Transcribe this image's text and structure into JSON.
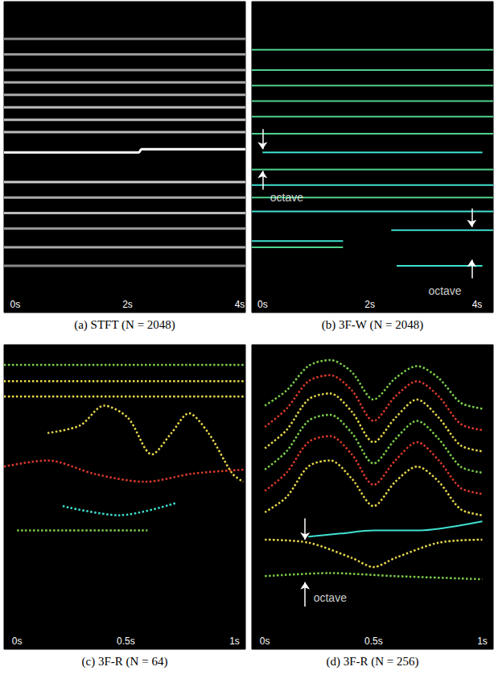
{
  "chart_data": [
    {
      "type": "line",
      "title": "(a) STFT (N = 2048)",
      "xlim": [
        -0.2,
        4.1
      ],
      "xticks": [
        {
          "value": 0,
          "label": "0s"
        },
        {
          "value": 2,
          "label": "2s"
        },
        {
          "value": 4,
          "label": "4s"
        }
      ],
      "ylim": [
        0,
        1
      ],
      "tick_labels": "x",
      "series": [
        {
          "color": "#ffffff",
          "line_style": "solid",
          "values": [
            [
              -0.2,
              0.515
            ],
            [
              2.2,
              0.515
            ],
            [
              2.25,
              0.525
            ],
            [
              4.1,
              0.525
            ]
          ]
        },
        {
          "color": "#bbbbbb",
          "line_style": "solid",
          "values": [
            [
              -0.2,
              0.58
            ],
            [
              4.1,
              0.58
            ]
          ]
        },
        {
          "color": "#bbbbbb",
          "line_style": "solid",
          "values": [
            [
              -0.2,
              0.62
            ],
            [
              4.1,
              0.62
            ]
          ]
        },
        {
          "color": "#bbbbbb",
          "line_style": "solid",
          "values": [
            [
              -0.2,
              0.66
            ],
            [
              4.1,
              0.66
            ]
          ]
        },
        {
          "color": "#aaaaaa",
          "line_style": "solid",
          "values": [
            [
              -0.2,
              0.7
            ],
            [
              4.1,
              0.7
            ]
          ]
        },
        {
          "color": "#aaaaaa",
          "line_style": "solid",
          "values": [
            [
              -0.2,
              0.74
            ],
            [
              4.1,
              0.74
            ]
          ]
        },
        {
          "color": "#999999",
          "line_style": "solid",
          "values": [
            [
              -0.2,
              0.78
            ],
            [
              4.1,
              0.78
            ]
          ]
        },
        {
          "color": "#999999",
          "line_style": "solid",
          "values": [
            [
              -0.2,
              0.83
            ],
            [
              4.1,
              0.83
            ]
          ]
        },
        {
          "color": "#888888",
          "line_style": "solid",
          "values": [
            [
              -0.2,
              0.88
            ],
            [
              4.1,
              0.88
            ]
          ]
        },
        {
          "color": "#cccccc",
          "line_style": "solid",
          "values": [
            [
              -0.2,
              0.42
            ],
            [
              4.1,
              0.42
            ]
          ]
        },
        {
          "color": "#aaaaaa",
          "line_style": "solid",
          "values": [
            [
              -0.2,
              0.37
            ],
            [
              4.1,
              0.37
            ]
          ]
        },
        {
          "color": "#bbbbbb",
          "line_style": "solid",
          "values": [
            [
              -0.2,
              0.32
            ],
            [
              4.1,
              0.32
            ]
          ]
        },
        {
          "color": "#999999",
          "line_style": "solid",
          "values": [
            [
              -0.2,
              0.27
            ],
            [
              4.1,
              0.27
            ]
          ]
        },
        {
          "color": "#aaaaaa",
          "line_style": "solid",
          "values": [
            [
              -0.2,
              0.21
            ],
            [
              4.1,
              0.21
            ]
          ]
        },
        {
          "color": "#888888",
          "line_style": "solid",
          "values": [
            [
              -0.2,
              0.15
            ],
            [
              4.1,
              0.15
            ]
          ]
        }
      ],
      "annotations": []
    },
    {
      "type": "line",
      "title": "(b) 3F-W (N = 2048)",
      "xlim": [
        -0.2,
        4.3
      ],
      "xticks": [
        {
          "value": 0,
          "label": "0s"
        },
        {
          "value": 2,
          "label": "2s"
        },
        {
          "value": 4,
          "label": "4s"
        }
      ],
      "ylim": [
        0,
        1
      ],
      "tick_labels": "x",
      "series": [
        {
          "color": "#40e0d0",
          "line_style": "solid",
          "values": [
            [
              0,
              0.515
            ],
            [
              4.1,
              0.515
            ]
          ]
        },
        {
          "color": "#4fd18b",
          "line_style": "solid",
          "values": [
            [
              -0.2,
              0.845
            ],
            [
              4.3,
              0.845
            ]
          ]
        },
        {
          "color": "#4fd18b",
          "line_style": "solid",
          "values": [
            [
              -0.2,
              0.78
            ],
            [
              4.3,
              0.78
            ]
          ]
        },
        {
          "color": "#4fd18b",
          "line_style": "solid",
          "values": [
            [
              -0.2,
              0.73
            ],
            [
              4.3,
              0.73
            ]
          ]
        },
        {
          "color": "#4fd18b",
          "line_style": "solid",
          "values": [
            [
              -0.2,
              0.68
            ],
            [
              4.3,
              0.68
            ]
          ]
        },
        {
          "color": "#4fd18b",
          "line_style": "solid",
          "values": [
            [
              -0.2,
              0.63
            ],
            [
              4.3,
              0.63
            ]
          ]
        },
        {
          "color": "#4fd18b",
          "line_style": "solid",
          "values": [
            [
              -0.2,
              0.575
            ],
            [
              4.3,
              0.575
            ]
          ]
        },
        {
          "color": "#4fd18b",
          "line_style": "solid",
          "values": [
            [
              -0.2,
              0.46
            ],
            [
              4.3,
              0.46
            ]
          ]
        },
        {
          "color": "#40e0d0",
          "line_style": "solid",
          "values": [
            [
              -0.2,
              0.41
            ],
            [
              4.3,
              0.41
            ]
          ]
        },
        {
          "color": "#4fd18b",
          "line_style": "solid",
          "values": [
            [
              -0.2,
              0.37
            ],
            [
              4.3,
              0.37
            ]
          ]
        },
        {
          "color": "#40e0d0",
          "line_style": "solid",
          "values": [
            [
              -0.2,
              0.325
            ],
            [
              4.3,
              0.325
            ]
          ]
        },
        {
          "color": "#40e0d0",
          "line_style": "solid",
          "values": [
            [
              2.4,
              0.265
            ],
            [
              4.3,
              0.265
            ]
          ]
        },
        {
          "color": "#40e0d0",
          "line_style": "solid",
          "values": [
            [
              -0.2,
              0.23
            ],
            [
              1.5,
              0.23
            ]
          ]
        },
        {
          "color": "#4fd18b",
          "line_style": "solid",
          "values": [
            [
              -0.2,
              0.21
            ],
            [
              1.5,
              0.21
            ]
          ]
        },
        {
          "color": "#40e0d0",
          "line_style": "solid",
          "values": [
            [
              2.5,
              0.15
            ],
            [
              4.1,
              0.15
            ]
          ]
        }
      ],
      "annotations": [
        {
          "text": "octave",
          "x": 0.45,
          "y": 0.37,
          "arrows": [
            [
              0,
              0.59,
              0.525
            ],
            [
              0,
              0.395,
              0.455
            ]
          ]
        },
        {
          "text": "octave",
          "x": 3.4,
          "y": 0.07,
          "arrows": [
            [
              3.9,
              0.335,
              0.275
            ],
            [
              3.9,
              0.11,
              0.17
            ]
          ]
        }
      ]
    },
    {
      "type": "line",
      "title": "(c) 3F-R (N = 64)",
      "xlim": [
        -0.06,
        1.05
      ],
      "xticks": [
        {
          "value": 0,
          "label": "0s"
        },
        {
          "value": 0.5,
          "label": "0.5s"
        },
        {
          "value": 1,
          "label": "1s"
        }
      ],
      "ylim": [
        0,
        1
      ],
      "tick_labels": "x",
      "series": [
        {
          "color": "#7ccf4a",
          "line_style": "dotted",
          "values": [
            [
              -0.06,
              0.934
            ],
            [
              1.05,
              0.934
            ]
          ]
        },
        {
          "color": "#e8d84a",
          "line_style": "dotted",
          "values": [
            [
              -0.06,
              0.88
            ],
            [
              1.05,
              0.88
            ]
          ]
        },
        {
          "color": "#e8d84a",
          "line_style": "dotted",
          "values": [
            [
              -0.06,
              0.83
            ],
            [
              1.05,
              0.83
            ]
          ]
        },
        {
          "color": "#e8d84a",
          "line_style": "dotted",
          "values": [
            [
              0.14,
              0.71
            ],
            [
              0.29,
              0.735
            ],
            [
              0.4,
              0.8
            ],
            [
              0.51,
              0.76
            ],
            [
              0.62,
              0.64
            ],
            [
              0.71,
              0.71
            ],
            [
              0.79,
              0.775
            ],
            [
              0.88,
              0.71
            ],
            [
              0.99,
              0.577
            ],
            [
              1.04,
              0.55
            ]
          ]
        },
        {
          "color": "#d93a2a",
          "line_style": "dotted",
          "values": [
            [
              -0.06,
              0.6
            ],
            [
              0.14,
              0.62
            ],
            [
              0.36,
              0.575
            ],
            [
              0.59,
              0.55
            ],
            [
              0.81,
              0.577
            ],
            [
              1.05,
              0.59
            ]
          ]
        },
        {
          "color": "#40e0d0",
          "line_style": "dotted",
          "values": [
            [
              0.21,
              0.47
            ],
            [
              0.47,
              0.44
            ],
            [
              0.73,
              0.48
            ]
          ]
        },
        {
          "color": "#7ccf4a",
          "line_style": "dotted",
          "values": [
            [
              0,
              0.39
            ],
            [
              0.6,
              0.39
            ]
          ]
        }
      ],
      "annotations": []
    },
    {
      "type": "line",
      "title": "(d) 3F-R (N = 256)",
      "xlim": [
        -0.06,
        1.05
      ],
      "xticks": [
        {
          "value": 0,
          "label": "0s"
        },
        {
          "value": 0.5,
          "label": "0.5s"
        },
        {
          "value": 1,
          "label": "1s"
        }
      ],
      "ylim": [
        0,
        1
      ],
      "tick_labels": "x",
      "series": [
        {
          "color": "#e8d84a",
          "line_style": "dotted",
          "values": [
            [
              0,
              0.45
            ],
            [
              0.1,
              0.5
            ],
            [
              0.2,
              0.6
            ],
            [
              0.3,
              0.62
            ],
            [
              0.4,
              0.56
            ],
            [
              0.5,
              0.47
            ],
            [
              0.6,
              0.55
            ],
            [
              0.7,
              0.6
            ],
            [
              0.8,
              0.55
            ],
            [
              0.9,
              0.46
            ],
            [
              1.0,
              0.44
            ]
          ]
        },
        {
          "color": "#d93a2a",
          "line_style": "dotted",
          "values": [
            [
              0,
              0.52
            ],
            [
              0.1,
              0.58
            ],
            [
              0.2,
              0.68
            ],
            [
              0.3,
              0.7
            ],
            [
              0.4,
              0.64
            ],
            [
              0.5,
              0.54
            ],
            [
              0.6,
              0.62
            ],
            [
              0.7,
              0.68
            ],
            [
              0.8,
              0.62
            ],
            [
              0.9,
              0.53
            ],
            [
              1.0,
              0.51
            ]
          ]
        },
        {
          "color": "#7ccf4a",
          "line_style": "dotted",
          "values": [
            [
              0,
              0.59
            ],
            [
              0.1,
              0.65
            ],
            [
              0.2,
              0.75
            ],
            [
              0.3,
              0.77
            ],
            [
              0.4,
              0.71
            ],
            [
              0.5,
              0.61
            ],
            [
              0.6,
              0.69
            ],
            [
              0.7,
              0.75
            ],
            [
              0.8,
              0.69
            ],
            [
              0.9,
              0.6
            ],
            [
              1.0,
              0.58
            ]
          ]
        },
        {
          "color": "#e8d84a",
          "line_style": "dotted",
          "values": [
            [
              0,
              0.66
            ],
            [
              0.1,
              0.72
            ],
            [
              0.2,
              0.82
            ],
            [
              0.3,
              0.84
            ],
            [
              0.4,
              0.78
            ],
            [
              0.5,
              0.68
            ],
            [
              0.6,
              0.76
            ],
            [
              0.7,
              0.82
            ],
            [
              0.8,
              0.76
            ],
            [
              0.9,
              0.67
            ],
            [
              1.0,
              0.65
            ]
          ]
        },
        {
          "color": "#d93a2a",
          "line_style": "dotted",
          "values": [
            [
              0,
              0.73
            ],
            [
              0.1,
              0.79
            ],
            [
              0.2,
              0.88
            ],
            [
              0.3,
              0.9
            ],
            [
              0.4,
              0.85
            ],
            [
              0.5,
              0.75
            ],
            [
              0.6,
              0.83
            ],
            [
              0.7,
              0.88
            ],
            [
              0.8,
              0.83
            ],
            [
              0.9,
              0.74
            ],
            [
              1.0,
              0.72
            ]
          ]
        },
        {
          "color": "#7ccf4a",
          "line_style": "dotted",
          "values": [
            [
              0,
              0.8
            ],
            [
              0.1,
              0.85
            ],
            [
              0.2,
              0.93
            ],
            [
              0.3,
              0.95
            ],
            [
              0.4,
              0.91
            ],
            [
              0.5,
              0.82
            ],
            [
              0.6,
              0.89
            ],
            [
              0.7,
              0.93
            ],
            [
              0.8,
              0.89
            ],
            [
              0.9,
              0.81
            ],
            [
              1.0,
              0.79
            ]
          ]
        },
        {
          "color": "#40e0d0",
          "line_style": "solid",
          "values": [
            [
              0.2,
              0.37
            ],
            [
              0.35,
              0.38
            ],
            [
              0.5,
              0.39
            ],
            [
              0.7,
              0.39
            ],
            [
              1.0,
              0.42
            ]
          ]
        },
        {
          "color": "#e8d84a",
          "line_style": "dotted",
          "values": [
            [
              0,
              0.36
            ],
            [
              0.2,
              0.35
            ],
            [
              0.4,
              0.3
            ],
            [
              0.5,
              0.27
            ],
            [
              0.6,
              0.3
            ],
            [
              0.8,
              0.35
            ],
            [
              1.0,
              0.36
            ]
          ]
        },
        {
          "color": "#7ccf4a",
          "line_style": "dotted",
          "values": [
            [
              0,
              0.24
            ],
            [
              0.3,
              0.25
            ],
            [
              0.6,
              0.24
            ],
            [
              1.0,
              0.23
            ]
          ]
        }
      ],
      "annotations": [
        {
          "text": "octave",
          "x": 0.3,
          "y": 0.17,
          "arrows": [
            [
              0.185,
              0.43,
              0.36
            ],
            [
              0.185,
              0.14,
              0.22
            ]
          ]
        }
      ]
    }
  ]
}
